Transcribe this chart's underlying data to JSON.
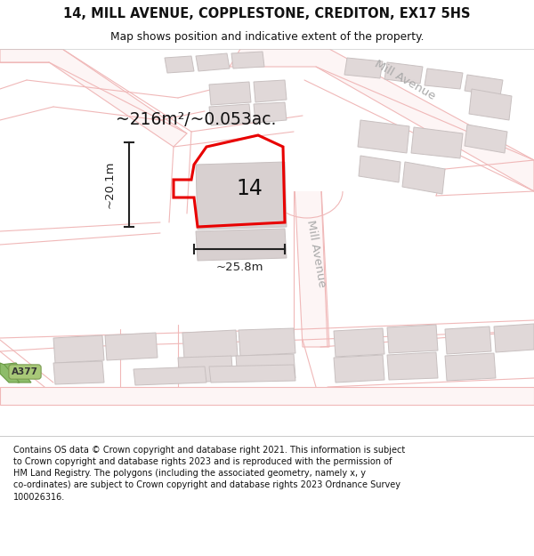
{
  "title": "14, MILL AVENUE, COPPLESTONE, CREDITON, EX17 5HS",
  "subtitle": "Map shows position and indicative extent of the property.",
  "footer": "Contains OS data © Crown copyright and database right 2021. This information is subject to Crown copyright and database rights 2023 and is reproduced with the permission of HM Land Registry. The polygons (including the associated geometry, namely x, y co-ordinates) are subject to Crown copyright and database rights 2023 Ordnance Survey 100026316.",
  "map_bg": "#ffffff",
  "road_line_color": "#f0b8b8",
  "road_fill_color": "#fdf5f5",
  "building_fill": "#e0d8d8",
  "building_edge": "#c8c0c0",
  "highlight_fill": "#d8d0d0",
  "red_plot_color": "#e80000",
  "dim_color": "#222222",
  "street_label_color": "#aaaaaa",
  "area_text": "~216m²/~0.053ac.",
  "number_label": "14",
  "width_label": "~25.8m",
  "height_label": "~20.1m",
  "mill_avenue_top": "Mill Avenue",
  "mill_avenue_side": "Mill Avenue",
  "a377_label": "A377",
  "a377_bg": "#a8c878"
}
